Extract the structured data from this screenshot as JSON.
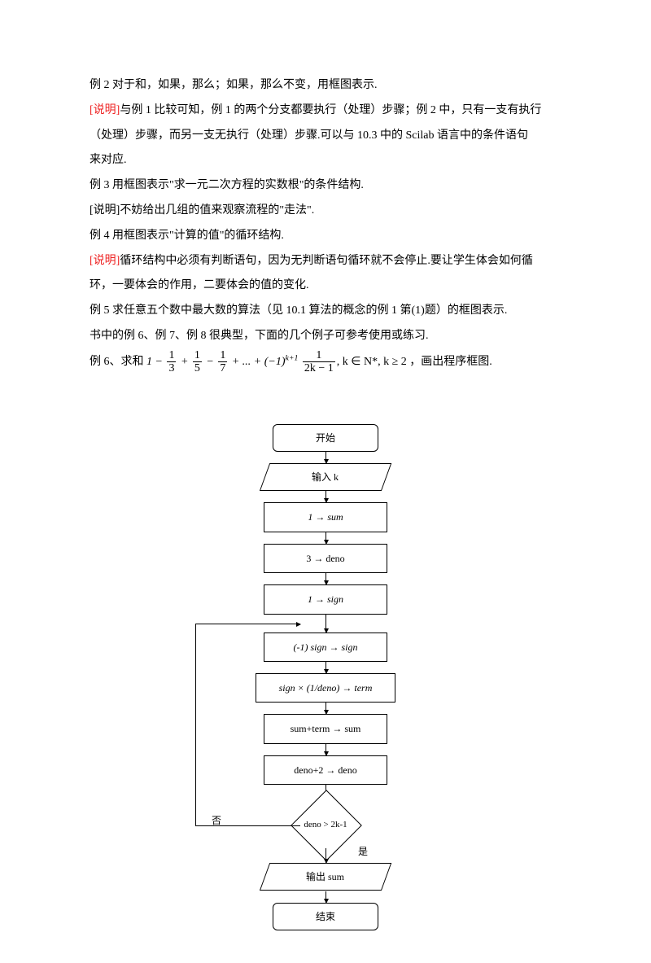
{
  "text": {
    "p1": "例 2 对于和，如果，那么；如果，那么不变，用框图表示.",
    "p2a": "[说明]",
    "p2b": "与例 1 比较可知，例 1 的两个分支都要执行（处理）步骤；例 2 中，只有一支有执行",
    "p3": " （处理）步骤，而另一支无执行（处理）步骤.可以与 10.3 中的 Scilab 语言中的条件语句",
    "p4": "来对应.",
    "p5": "例 3 用框图表示\"求一元二次方程的实数根\"的条件结构.",
    "p6": "[说明]不妨给出几组的值来观察流程的\"走法\".",
    "p7": "例 4 用框图表示\"计算的值\"的循环结构.",
    "p8a": "[说明]",
    "p8b": "循环结构中必须有判断语句，因为无判断语句循环就不会停止.要让学生体会如何循",
    "p9": "环，一要体会的作用，二要体会的值的变化.",
    "p10": "例 5 求任意五个数中最大数的算法（见 10.1 算法的概念的例 1 第(1)题）的框图表示.",
    "p11": "书中的例 6、例 7、例 8 很典型，下面的几个例子可参考使用或练习.",
    "p12a": "例 6、求和",
    "p12b": "，画出程序框图."
  },
  "formula": {
    "frac1_num": "1",
    "frac1_den": "3",
    "frac2_num": "1",
    "frac2_den": "5",
    "frac3_num": "1",
    "frac3_den": "7",
    "exp": "k+1",
    "fracK_num": "1",
    "fracK_den": "2k − 1",
    "cond": ", k ∈ N*, k ≥ 2"
  },
  "flow": {
    "start": "开始",
    "input": "输入 k",
    "s1": "1 → sum",
    "s2": "3 → deno",
    "s3": "1 → sign",
    "s4": "(-1) sign → sign",
    "s5": "sign × (1/deno) → term",
    "s6": "sum+term → sum",
    "s7": "deno+2 → deno",
    "cond": "deno > 2k-1",
    "no": "否",
    "yes": "是",
    "output": "输出 sum",
    "end": "结束"
  }
}
